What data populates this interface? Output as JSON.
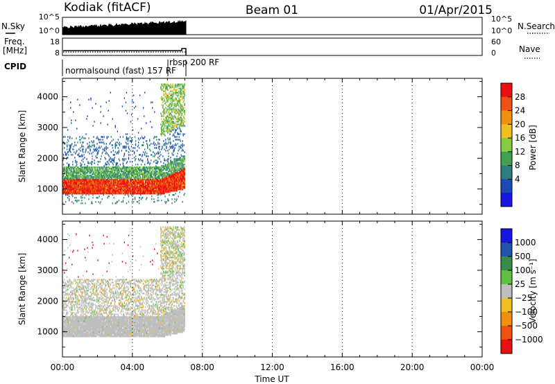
{
  "header": {
    "station": "Kodiak (fitACF)",
    "beam": "Beam 01",
    "date": "01/Apr/2015"
  },
  "nsky_panel": {
    "left_label": "N.Sky",
    "left_ticks": [
      "10^5",
      "10^0"
    ],
    "right_ticks": [
      "10^5",
      "10^0"
    ],
    "right_label": "N.Search"
  },
  "freq_panel": {
    "left_label_1": "Freq.",
    "left_label_2": "[MHz]",
    "left_ticks": [
      "18",
      "8"
    ],
    "right_ticks": [
      "60",
      "0"
    ],
    "right_label": "Nave"
  },
  "cpid": {
    "label": "CPID",
    "mode_1": "normalsound (fast) 157 RF",
    "mode_2": "rbsp 200 RF"
  },
  "colors": {
    "power_scale": [
      "#1616e0",
      "#1a4ab4",
      "#2d7d7d",
      "#3fa050",
      "#88cc44",
      "#f0c020",
      "#f09010",
      "#f05010",
      "#e81010"
    ],
    "velocity_scale": [
      "#1616e0",
      "#2255aa",
      "#3a8a4a",
      "#60c040",
      "#bebebe",
      "#f0c020",
      "#f09010",
      "#f05010",
      "#e81010"
    ]
  },
  "chart_data": [
    {
      "type": "heatmap",
      "panel": "power",
      "ylabel": "Slant Range [km]",
      "y_ticks": [
        1000,
        2000,
        3000,
        4000
      ],
      "ylim": [
        180,
        4600
      ],
      "xlim_hours": [
        0,
        24
      ],
      "data_extent_hours": [
        0,
        7
      ],
      "colorbar": {
        "label": "Power [dB]",
        "ticks": [
          "28",
          "24",
          "20",
          "16",
          "12",
          "8",
          "4"
        ],
        "range": [
          0,
          32
        ]
      },
      "regions": [
        {
          "description": "strong scatter",
          "range_km": [
            800,
            1300
          ],
          "time_hours": [
            0,
            7
          ],
          "power_db": 28
        },
        {
          "description": "moderate scatter",
          "range_km": [
            1300,
            1700
          ],
          "time_hours": [
            0,
            7
          ],
          "power_db": 14
        },
        {
          "description": "weak scatter",
          "range_km": [
            1700,
            2700
          ],
          "time_hours": [
            0,
            7
          ],
          "power_db": 6
        }
      ]
    },
    {
      "type": "heatmap",
      "panel": "velocity",
      "ylabel": "Slant Range [km]",
      "y_ticks": [
        1000,
        2000,
        3000,
        4000
      ],
      "ylim": [
        180,
        4600
      ],
      "xlim_hours": [
        0,
        24
      ],
      "data_extent_hours": [
        0,
        7
      ],
      "colorbar": {
        "label": "Velocity [m s⁻¹]",
        "ticks": [
          "1000",
          "500",
          "100",
          "25",
          "−25",
          "−100",
          "−500",
          "−1000"
        ]
      }
    }
  ],
  "x_axis": {
    "label": "Time UT",
    "ticks": [
      "00:00",
      "04:00",
      "08:00",
      "12:00",
      "16:00",
      "20:00",
      "00:00"
    ]
  }
}
